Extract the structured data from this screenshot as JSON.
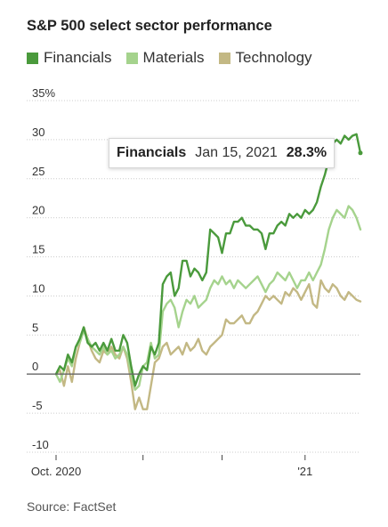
{
  "colors": {
    "financials": "#4a9a3c",
    "materials": "#a5d38d",
    "technology": "#c3b884",
    "zero_line": "#666666",
    "grid": "#cccccc"
  },
  "chart_data": {
    "type": "line",
    "title": "S&P 500 select sector performance",
    "ylabel": "",
    "xlabel": "",
    "ylim": [
      -10,
      35
    ],
    "yticks": [
      -10,
      -5,
      0,
      5,
      10,
      15,
      20,
      25,
      30,
      35
    ],
    "ytick_labels": [
      "-10",
      "-5",
      "0",
      "5",
      "10",
      "15",
      "20",
      "25",
      "30",
      "35%"
    ],
    "x_index_range": [
      0,
      77
    ],
    "xticks": [
      {
        "i": 0,
        "label": "Oct. 2020"
      },
      {
        "i": 22,
        "label": ""
      },
      {
        "i": 42,
        "label": ""
      },
      {
        "i": 63,
        "label": "'21"
      }
    ],
    "grid": "horizontal",
    "legend_position": "top",
    "series": [
      {
        "name": "Financials",
        "color_key": "financials",
        "values": [
          0,
          1,
          0.5,
          2.5,
          1.5,
          3.5,
          4.5,
          6,
          4,
          3.5,
          4,
          3,
          4,
          3,
          4.5,
          3,
          3,
          5,
          4,
          1,
          -1.5,
          0,
          1,
          0.5,
          3.5,
          2.5,
          4,
          11.5,
          12.5,
          13,
          10,
          11,
          14.5,
          14.5,
          12.5,
          13.5,
          13,
          12,
          13,
          18.5,
          18,
          17.5,
          15.5,
          18,
          18,
          19.5,
          19.5,
          20,
          19,
          19,
          18.5,
          18.5,
          18,
          16,
          18,
          18,
          19,
          19.5,
          19,
          20.5,
          20,
          20.5,
          20,
          21,
          20.5,
          21,
          22,
          24,
          25.5,
          27.5,
          29.5,
          30,
          29.5,
          30.5,
          30,
          30.5,
          30.7,
          28.3
        ]
      },
      {
        "name": "Materials",
        "color_key": "materials",
        "values": [
          0,
          -1,
          0.5,
          2,
          1,
          3.5,
          4,
          5.5,
          4.5,
          3.5,
          3,
          2.5,
          3.5,
          2.5,
          3,
          2,
          2.5,
          3.5,
          2.5,
          0,
          -2,
          -1.5,
          1,
          1.5,
          4,
          2,
          2.5,
          8,
          9,
          9.5,
          8.5,
          6,
          8,
          9.5,
          9,
          10,
          8.5,
          9,
          9.5,
          11,
          12,
          11.5,
          12.5,
          11.5,
          12,
          11,
          12,
          11.5,
          11,
          11.5,
          12,
          12.5,
          11.5,
          10.5,
          11.5,
          12,
          13,
          12.5,
          12,
          13,
          12,
          11,
          12,
          12,
          13,
          12,
          13,
          14,
          16,
          18.5,
          20,
          21,
          20.5,
          20,
          21.5,
          21,
          20,
          18.5
        ]
      },
      {
        "name": "Technology",
        "color_key": "technology",
        "values": [
          0,
          0.5,
          -1.5,
          1,
          -1,
          2,
          4,
          6,
          4.5,
          3,
          2,
          1.5,
          3,
          2.5,
          3.5,
          2.5,
          2,
          3.5,
          2,
          -1,
          -4.5,
          -3,
          -4.5,
          -4.5,
          -1.5,
          1.5,
          2,
          3.5,
          4,
          2.5,
          3,
          3.5,
          2.5,
          4,
          3,
          3.5,
          4.5,
          3,
          2.5,
          3.5,
          4,
          4.5,
          5,
          7,
          6.5,
          6.5,
          7,
          7.5,
          6.5,
          6.5,
          7.5,
          8,
          9,
          10,
          9.5,
          10,
          9.5,
          9,
          10.5,
          10,
          11,
          10.5,
          9.5,
          10.5,
          11.5,
          9,
          8.5,
          12,
          11,
          10.5,
          11.5,
          11,
          10,
          9.5,
          10.5,
          10,
          9.5,
          9.3
        ]
      }
    ],
    "annotations": [
      {
        "series": "Financials",
        "date": "Jan 15, 2021",
        "value": "28.3%"
      }
    ]
  },
  "tooltip": {
    "series": "Financials",
    "date": "Jan 15, 2021",
    "value": "28.3%"
  },
  "source": "Source: FactSet"
}
